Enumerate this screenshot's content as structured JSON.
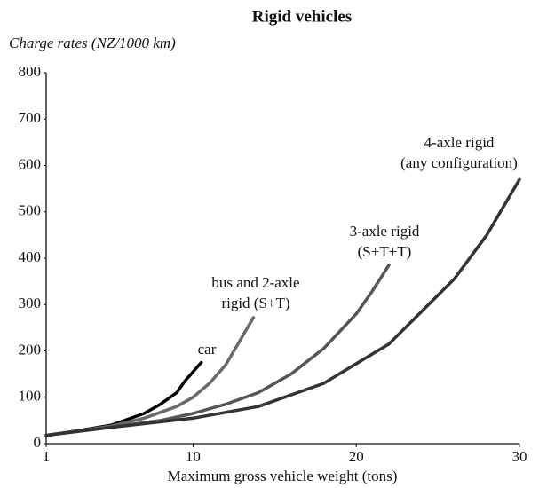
{
  "chart_data": {
    "type": "line",
    "title": "Rigid vehicles",
    "y_label": "Charge rates (NZ/1000 km)",
    "x_label": "Maximum gross vehicle weight (tons)",
    "xlim": [
      1,
      30
    ],
    "xticks": [
      1,
      10,
      20,
      30
    ],
    "ylim": [
      0,
      800
    ],
    "yticks": [
      0,
      100,
      200,
      300,
      400,
      500,
      600,
      700,
      800
    ],
    "grid": false,
    "series": [
      {
        "name": [
          "car"
        ],
        "color": "#000000",
        "x": [
          1,
          3,
          5,
          7,
          8,
          9,
          9.5,
          10.5
        ],
        "y": [
          18,
          28,
          40,
          65,
          85,
          110,
          135,
          175
        ]
      },
      {
        "name": [
          "bus and 2-axle",
          "rigid (S+T)"
        ],
        "color": "#6a6a6a",
        "x": [
          1,
          3,
          5,
          7,
          9,
          10,
          11,
          12,
          13,
          13.7
        ],
        "y": [
          18,
          27,
          38,
          55,
          80,
          100,
          130,
          170,
          230,
          272
        ]
      },
      {
        "name": [
          "3-axle rigid",
          "(S+T+T)"
        ],
        "color": "#555555",
        "x": [
          1,
          5,
          8,
          10,
          12,
          14,
          16,
          18,
          20,
          21,
          22
        ],
        "y": [
          18,
          36,
          50,
          65,
          85,
          110,
          150,
          205,
          280,
          330,
          385
        ]
      },
      {
        "name": [
          "4-axle rigid",
          "(any configuration)"
        ],
        "color": "#333333",
        "x": [
          1,
          5,
          10,
          14,
          18,
          22,
          26,
          28,
          30
        ],
        "y": [
          18,
          35,
          55,
          80,
          130,
          215,
          355,
          450,
          570
        ]
      }
    ]
  }
}
